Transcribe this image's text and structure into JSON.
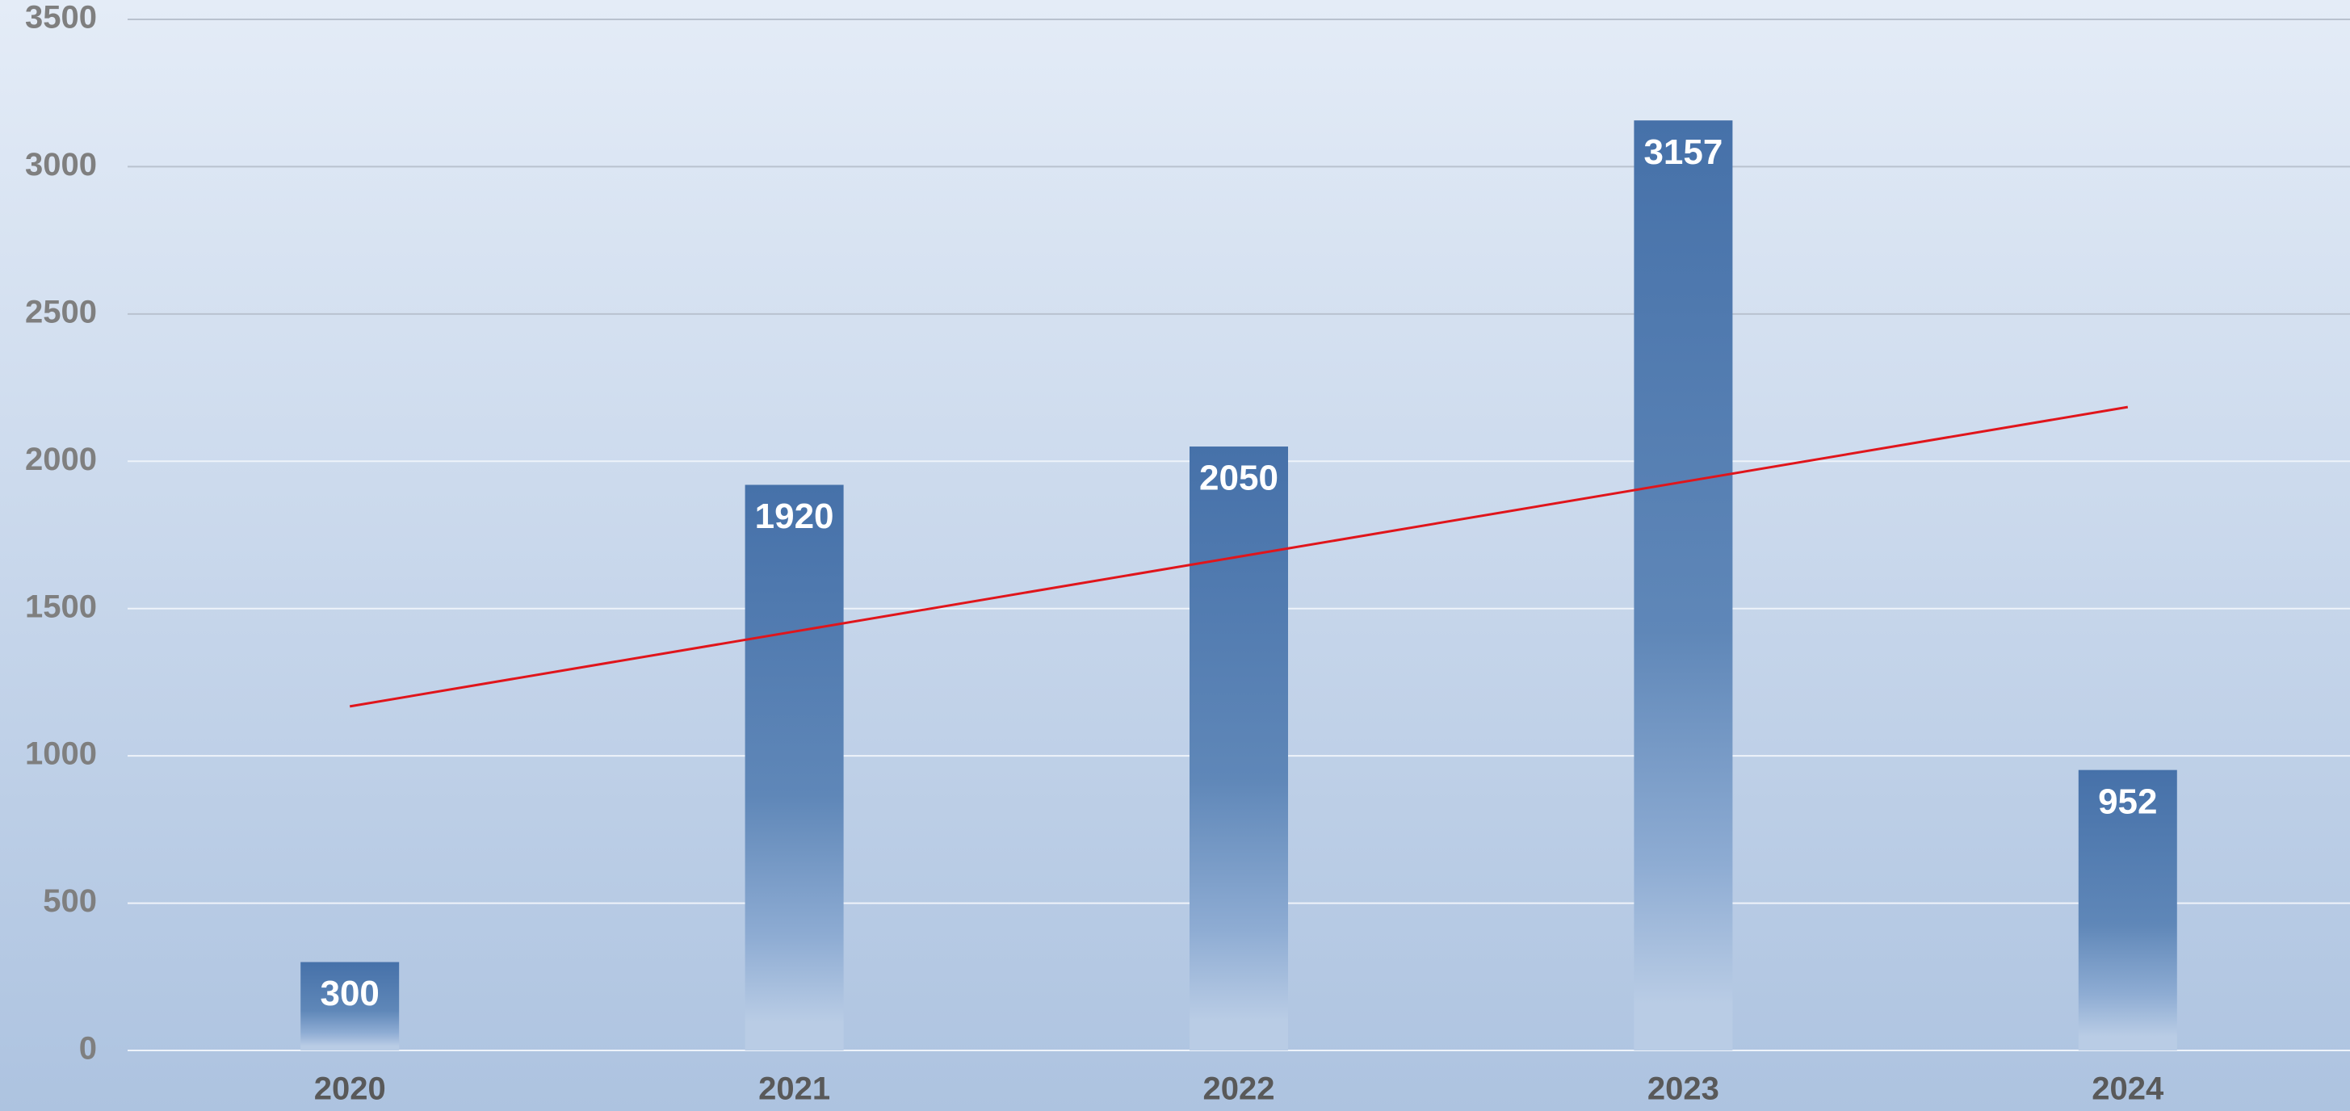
{
  "chart_data": {
    "type": "bar",
    "categories": [
      "2020",
      "2021",
      "2022",
      "2023",
      "2024"
    ],
    "values": [
      300,
      1920,
      2050,
      3157,
      952
    ],
    "color": "#4671a9",
    "ylim": [
      0,
      3500
    ],
    "yticks": [
      0,
      500,
      1000,
      1500,
      2000,
      2500,
      3000,
      3500
    ],
    "grid": true,
    "trendline": {
      "color": "#e0151b",
      "values": [
        1168,
        1422,
        1676,
        1930,
        2184
      ]
    }
  }
}
